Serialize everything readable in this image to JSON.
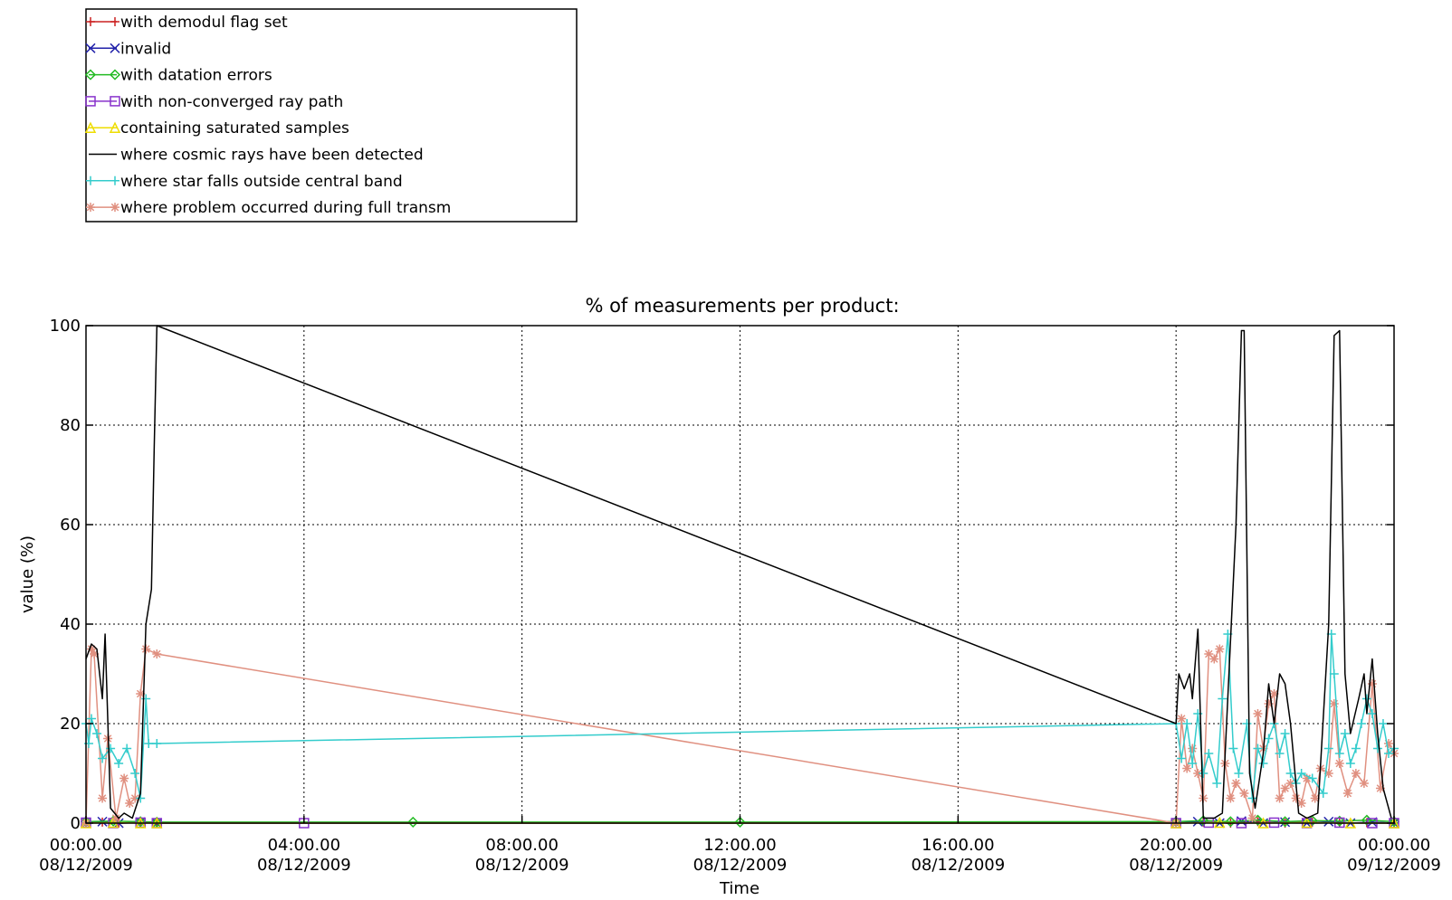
{
  "chart_data": {
    "type": "line",
    "title": "% of measurements per product:",
    "xlabel": "Time",
    "ylabel": "value (%)",
    "ylim": [
      0,
      100
    ],
    "xlim_hours": [
      0,
      24
    ],
    "grid": true,
    "grid_style": "dotted",
    "legend_placement": "top-left, above plot",
    "x_ticks": [
      {
        "hours": 0,
        "time": "00:00.00",
        "date": "08/12/2009"
      },
      {
        "hours": 4,
        "time": "04:00.00",
        "date": "08/12/2009"
      },
      {
        "hours": 8,
        "time": "08:00.00",
        "date": "08/12/2009"
      },
      {
        "hours": 12,
        "time": "12:00.00",
        "date": "08/12/2009"
      },
      {
        "hours": 16,
        "time": "16:00.00",
        "date": "08/12/2009"
      },
      {
        "hours": 20,
        "time": "20:00.00",
        "date": "08/12/2009"
      },
      {
        "hours": 24,
        "time": "00:00.00",
        "date": "09/12/2009"
      }
    ],
    "y_ticks": [
      0,
      20,
      40,
      60,
      80,
      100
    ],
    "series": [
      {
        "name": "with demodul flag set",
        "color": "#cc2222",
        "marker": "plus",
        "points": [
          [
            0,
            0
          ],
          [
            0.3,
            0.2
          ],
          [
            0.6,
            0
          ],
          [
            1.0,
            0.1
          ],
          [
            1.3,
            0
          ],
          [
            20.0,
            0
          ],
          [
            20.5,
            0.2
          ],
          [
            21.0,
            0
          ],
          [
            21.5,
            0.3
          ],
          [
            22.0,
            0
          ],
          [
            22.5,
            0.2
          ],
          [
            23.0,
            0
          ],
          [
            23.5,
            0.1
          ],
          [
            24.0,
            0
          ]
        ]
      },
      {
        "name": "invalid",
        "color": "#2222aa",
        "marker": "x",
        "points": [
          [
            0,
            0
          ],
          [
            0.3,
            0.3
          ],
          [
            0.6,
            0
          ],
          [
            1.0,
            0.2
          ],
          [
            1.3,
            0
          ],
          [
            20.0,
            0
          ],
          [
            20.4,
            0.3
          ],
          [
            20.8,
            0
          ],
          [
            21.2,
            0.4
          ],
          [
            21.6,
            0
          ],
          [
            22.0,
            0.2
          ],
          [
            22.4,
            0
          ],
          [
            22.8,
            0.3
          ],
          [
            23.2,
            0
          ],
          [
            23.6,
            0.2
          ],
          [
            24.0,
            0
          ]
        ]
      },
      {
        "name": "with datation errors",
        "color": "#22bb22",
        "marker": "diamond",
        "points": [
          [
            0,
            0.3
          ],
          [
            0.5,
            0.4
          ],
          [
            1.0,
            0.3
          ],
          [
            1.3,
            0.2
          ],
          [
            6,
            0.2
          ],
          [
            12,
            0.2
          ],
          [
            20.0,
            0.3
          ],
          [
            20.5,
            0.5
          ],
          [
            21.0,
            0.3
          ],
          [
            21.5,
            0.6
          ],
          [
            22.0,
            0.3
          ],
          [
            22.5,
            0.5
          ],
          [
            23.0,
            0.4
          ],
          [
            23.5,
            0.6
          ],
          [
            24.0,
            0.3
          ]
        ]
      },
      {
        "name": "with non-converged ray path",
        "color": "#8833cc",
        "marker": "square",
        "points": [
          [
            0,
            0.1
          ],
          [
            0.5,
            0
          ],
          [
            1.0,
            0.1
          ],
          [
            1.3,
            0
          ],
          [
            4,
            0
          ],
          [
            20.0,
            0
          ],
          [
            20.6,
            0.1
          ],
          [
            21.2,
            0
          ],
          [
            21.8,
            0.1
          ],
          [
            22.4,
            0
          ],
          [
            23.0,
            0.1
          ],
          [
            23.6,
            0
          ],
          [
            24.0,
            0
          ]
        ]
      },
      {
        "name": "containing saturated samples",
        "color": "#eedd00",
        "marker": "triangle",
        "points": [
          [
            0,
            0
          ],
          [
            0.5,
            0.1
          ],
          [
            1.0,
            0
          ],
          [
            1.3,
            0
          ],
          [
            20.0,
            0
          ],
          [
            20.8,
            0.1
          ],
          [
            21.6,
            0
          ],
          [
            22.4,
            0.1
          ],
          [
            23.2,
            0
          ],
          [
            24.0,
            0
          ]
        ]
      },
      {
        "name": "where cosmic rays have been detected",
        "color": "#000000",
        "marker": "line",
        "points": [
          [
            0,
            33
          ],
          [
            0.1,
            36
          ],
          [
            0.2,
            35
          ],
          [
            0.3,
            25
          ],
          [
            0.35,
            38
          ],
          [
            0.45,
            3
          ],
          [
            0.6,
            1
          ],
          [
            0.7,
            2
          ],
          [
            0.85,
            1
          ],
          [
            1.0,
            6
          ],
          [
            1.1,
            40
          ],
          [
            1.2,
            47
          ],
          [
            1.25,
            75
          ],
          [
            1.3,
            100
          ],
          [
            20.0,
            20
          ],
          [
            20.05,
            30
          ],
          [
            20.15,
            27
          ],
          [
            20.25,
            30
          ],
          [
            20.3,
            25
          ],
          [
            20.4,
            39
          ],
          [
            20.5,
            1
          ],
          [
            20.7,
            1
          ],
          [
            20.85,
            2
          ],
          [
            21.1,
            60
          ],
          [
            21.2,
            99
          ],
          [
            21.25,
            99
          ],
          [
            21.35,
            10
          ],
          [
            21.45,
            3
          ],
          [
            21.6,
            14
          ],
          [
            21.7,
            28
          ],
          [
            21.8,
            20
          ],
          [
            21.9,
            30
          ],
          [
            22.0,
            28
          ],
          [
            22.1,
            20
          ],
          [
            22.25,
            2
          ],
          [
            22.4,
            1
          ],
          [
            22.6,
            2
          ],
          [
            22.8,
            40
          ],
          [
            22.9,
            98
          ],
          [
            23.0,
            99
          ],
          [
            23.1,
            30
          ],
          [
            23.2,
            18
          ],
          [
            23.35,
            25
          ],
          [
            23.45,
            30
          ],
          [
            23.5,
            22
          ],
          [
            23.6,
            33
          ],
          [
            23.7,
            18
          ],
          [
            23.8,
            7
          ],
          [
            23.95,
            1
          ]
        ]
      },
      {
        "name": "where star falls outside central band",
        "color": "#33cccc",
        "marker": "plus",
        "points": [
          [
            0,
            20
          ],
          [
            0.05,
            16
          ],
          [
            0.1,
            21
          ],
          [
            0.2,
            18
          ],
          [
            0.3,
            13
          ],
          [
            0.45,
            15
          ],
          [
            0.6,
            12
          ],
          [
            0.75,
            15
          ],
          [
            0.9,
            10
          ],
          [
            1.0,
            5
          ],
          [
            1.1,
            25
          ],
          [
            1.15,
            16
          ],
          [
            1.3,
            16
          ],
          [
            20.0,
            20
          ],
          [
            20.1,
            13
          ],
          [
            20.2,
            20
          ],
          [
            20.3,
            12
          ],
          [
            20.4,
            22
          ],
          [
            20.5,
            10
          ],
          [
            20.6,
            14
          ],
          [
            20.75,
            8
          ],
          [
            20.85,
            25
          ],
          [
            20.95,
            38
          ],
          [
            21.05,
            15
          ],
          [
            21.15,
            10
          ],
          [
            21.3,
            20
          ],
          [
            21.4,
            5
          ],
          [
            21.5,
            15
          ],
          [
            21.6,
            12
          ],
          [
            21.7,
            17
          ],
          [
            21.8,
            20
          ],
          [
            21.9,
            14
          ],
          [
            22.0,
            18
          ],
          [
            22.1,
            10
          ],
          [
            22.2,
            8
          ],
          [
            22.3,
            10
          ],
          [
            22.5,
            9
          ],
          [
            22.7,
            6
          ],
          [
            22.8,
            15
          ],
          [
            22.85,
            38
          ],
          [
            22.9,
            30
          ],
          [
            23.0,
            14
          ],
          [
            23.1,
            18
          ],
          [
            23.2,
            12
          ],
          [
            23.3,
            15
          ],
          [
            23.4,
            20
          ],
          [
            23.5,
            25
          ],
          [
            23.6,
            22
          ],
          [
            23.7,
            15
          ],
          [
            23.8,
            20
          ],
          [
            23.9,
            14
          ],
          [
            24.0,
            15
          ]
        ]
      },
      {
        "name": "where problem occurred during full transm",
        "color": "#e09080",
        "marker": "asterisk",
        "points": [
          [
            0,
            0
          ],
          [
            0.1,
            35
          ],
          [
            0.15,
            34
          ],
          [
            0.3,
            5
          ],
          [
            0.4,
            17
          ],
          [
            0.55,
            1
          ],
          [
            0.7,
            9
          ],
          [
            0.8,
            4
          ],
          [
            0.9,
            5
          ],
          [
            1.0,
            26
          ],
          [
            1.1,
            35
          ],
          [
            1.3,
            34
          ],
          [
            20.0,
            0
          ],
          [
            20.1,
            21
          ],
          [
            20.2,
            11
          ],
          [
            20.3,
            15
          ],
          [
            20.4,
            10
          ],
          [
            20.5,
            5
          ],
          [
            20.6,
            34
          ],
          [
            20.7,
            33
          ],
          [
            20.8,
            35
          ],
          [
            20.9,
            12
          ],
          [
            21.0,
            5
          ],
          [
            21.1,
            8
          ],
          [
            21.25,
            6
          ],
          [
            21.4,
            1
          ],
          [
            21.5,
            22
          ],
          [
            21.6,
            15
          ],
          [
            21.7,
            24
          ],
          [
            21.8,
            26
          ],
          [
            21.9,
            5
          ],
          [
            22.0,
            7
          ],
          [
            22.1,
            8
          ],
          [
            22.2,
            5
          ],
          [
            22.3,
            4
          ],
          [
            22.4,
            9
          ],
          [
            22.55,
            5
          ],
          [
            22.65,
            11
          ],
          [
            22.8,
            10
          ],
          [
            22.9,
            24
          ],
          [
            23.0,
            12
          ],
          [
            23.15,
            6
          ],
          [
            23.3,
            10
          ],
          [
            23.45,
            8
          ],
          [
            23.6,
            28
          ],
          [
            23.75,
            7
          ],
          [
            23.9,
            16
          ],
          [
            24.0,
            14
          ]
        ]
      }
    ]
  }
}
